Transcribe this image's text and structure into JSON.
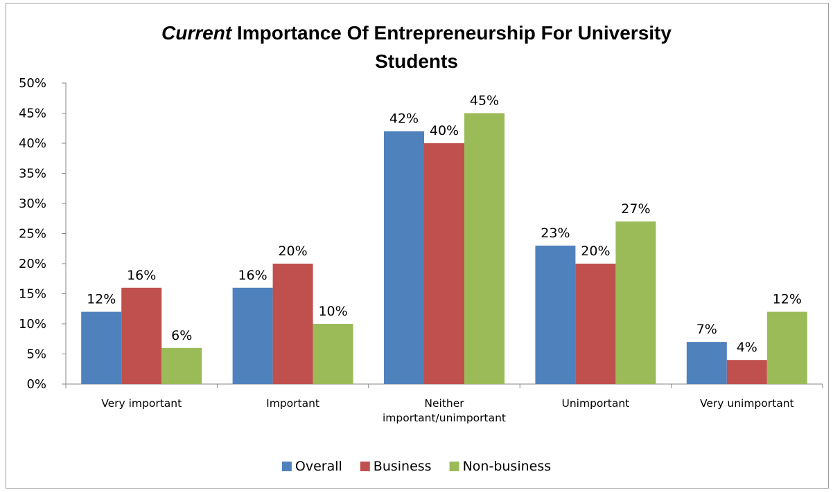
{
  "chart_data": {
    "type": "bar",
    "title_emphasis": "Current",
    "title_rest_line1": " Importance Of Entrepreneurship For University",
    "title_line2": "Students",
    "categories": [
      [
        "Very important"
      ],
      [
        "Important"
      ],
      [
        "Neither",
        "important/unimportant"
      ],
      [
        "Unimportant"
      ],
      [
        "Very unimportant"
      ]
    ],
    "series": [
      {
        "name": "Overall",
        "color": "#4f81bd",
        "values": [
          12,
          16,
          42,
          23,
          7
        ],
        "labels": [
          "12%",
          "16%",
          "42%",
          "23%",
          "7%"
        ]
      },
      {
        "name": "Business",
        "color": "#c0504d",
        "values": [
          16,
          20,
          40,
          20,
          4
        ],
        "labels": [
          "16%",
          "20%",
          "40%",
          "20%",
          "4%"
        ]
      },
      {
        "name": "Non-business",
        "color": "#9bbb59",
        "values": [
          6,
          10,
          45,
          27,
          12
        ],
        "labels": [
          "6%",
          "10%",
          "45%",
          "27%",
          "12%"
        ]
      }
    ],
    "ylim": [
      0,
      50
    ],
    "y_ticks": [
      "0%",
      "5%",
      "10%",
      "15%",
      "20%",
      "25%",
      "30%",
      "35%",
      "40%",
      "45%",
      "50%"
    ],
    "legend_position": "bottom",
    "grid": false
  }
}
